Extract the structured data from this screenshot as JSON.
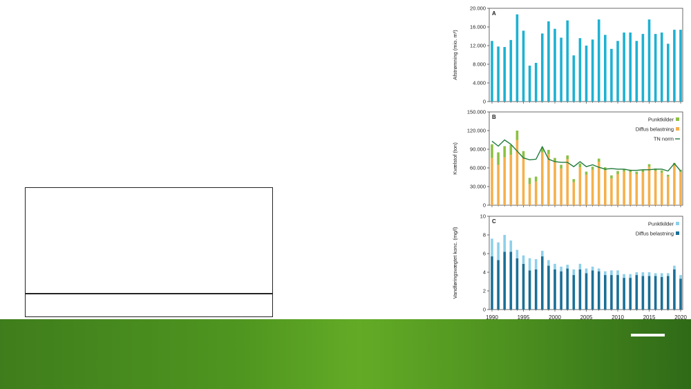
{
  "colors": {
    "runoff": "#1eb1d2",
    "point_sources_n": "#8cc043",
    "diffuse_n": "#f5b04c",
    "tn_norm": "#1f7a3a",
    "point_sources_conc": "#8ed0ea",
    "diffuse_conc": "#1a6f96",
    "band": "#4f9620"
  },
  "chart_data": [
    {
      "type": "bar",
      "panel": "A",
      "ylabel": "Afstrømning (mio. m³)",
      "ylim": [
        0,
        20000
      ],
      "yticks": [
        "0",
        "4.000",
        "8.000",
        "12.000",
        "16.000",
        "20.000"
      ],
      "x": [
        1990,
        1991,
        1992,
        1993,
        1994,
        1995,
        1996,
        1997,
        1998,
        1999,
        2000,
        2001,
        2002,
        2003,
        2004,
        2005,
        2006,
        2007,
        2008,
        2009,
        2010,
        2011,
        2012,
        2013,
        2014,
        2015,
        2016,
        2017,
        2018,
        2019,
        2020
      ],
      "series": [
        {
          "values": [
            13000,
            11800,
            11700,
            13200,
            18700,
            15200,
            7700,
            8300,
            14600,
            17200,
            15600,
            13700,
            17400,
            9900,
            13600,
            12000,
            13300,
            17600,
            14300,
            11300,
            13000,
            14800,
            14800,
            13000,
            14500,
            17600,
            14500,
            14800,
            12400,
            15400,
            15400
          ]
        }
      ]
    },
    {
      "type": "bar",
      "panel": "B",
      "ylabel": "Kvælstof (ton)",
      "ylim": [
        0,
        150000
      ],
      "yticks": [
        "0",
        "30.000",
        "60.000",
        "90.000",
        "120.000",
        "150.000"
      ],
      "legend_position": "top-right",
      "x": [
        1990,
        1991,
        1992,
        1993,
        1994,
        1995,
        1996,
        1997,
        1998,
        1999,
        2000,
        2001,
        2002,
        2003,
        2004,
        2005,
        2006,
        2007,
        2008,
        2009,
        2010,
        2011,
        2012,
        2013,
        2014,
        2015,
        2016,
        2017,
        2018,
        2019,
        2020
      ],
      "series": [
        {
          "name": "Diffus belastning",
          "values": [
            76000,
            65000,
            77000,
            81000,
            105000,
            76000,
            34000,
            38000,
            85000,
            82000,
            70000,
            59000,
            74000,
            37000,
            61000,
            49000,
            57000,
            70000,
            56000,
            43000,
            50000,
            54000,
            53000,
            50000,
            53000,
            62000,
            55000,
            52000,
            46000,
            64000,
            53000
          ]
        },
        {
          "name": "Punktkilder",
          "values": [
            22000,
            20000,
            18000,
            16000,
            15000,
            11000,
            10000,
            8000,
            8000,
            7000,
            6000,
            6000,
            6000,
            5000,
            6000,
            5000,
            5000,
            5000,
            5000,
            5000,
            5000,
            4000,
            4000,
            4000,
            4000,
            4000,
            4000,
            4000,
            3000,
            4000,
            4000
          ]
        },
        {
          "name": "TN norm",
          "type": "line",
          "values": [
            103000,
            95000,
            105000,
            98000,
            87000,
            76000,
            73000,
            74000,
            94000,
            74000,
            70000,
            69000,
            69000,
            62000,
            70000,
            62000,
            65000,
            61000,
            58000,
            59000,
            58000,
            58000,
            56000,
            56000,
            57000,
            57000,
            58000,
            58000,
            55000,
            67000,
            55000
          ]
        }
      ]
    },
    {
      "type": "bar",
      "panel": "C",
      "ylabel": "Vandføringsvægtet konc. (mg/l)",
      "ylim": [
        0,
        10
      ],
      "yticks": [
        "0",
        "2",
        "4",
        "6",
        "8",
        "10"
      ],
      "xticks": [
        "1990",
        "1995",
        "2000",
        "2005",
        "2010",
        "2015",
        "2020"
      ],
      "legend_position": "top-right",
      "x": [
        1990,
        1991,
        1992,
        1993,
        1994,
        1995,
        1996,
        1997,
        1998,
        1999,
        2000,
        2001,
        2002,
        2003,
        2004,
        2005,
        2006,
        2007,
        2008,
        2009,
        2010,
        2011,
        2012,
        2013,
        2014,
        2015,
        2016,
        2017,
        2018,
        2019,
        2020
      ],
      "series": [
        {
          "name": "Diffus belastning",
          "values": [
            5.7,
            5.3,
            6.2,
            6.2,
            5.5,
            4.9,
            4.2,
            4.3,
            5.7,
            4.7,
            4.3,
            4.1,
            4.4,
            3.7,
            4.3,
            3.9,
            4.2,
            4.1,
            3.7,
            3.7,
            3.7,
            3.4,
            3.4,
            3.7,
            3.6,
            3.6,
            3.6,
            3.5,
            3.6,
            4.3,
            3.3
          ]
        },
        {
          "name": "Punktkilder",
          "values": [
            1.9,
            1.9,
            1.8,
            1.2,
            0.9,
            0.9,
            1.3,
            1.1,
            0.6,
            0.6,
            0.6,
            0.5,
            0.4,
            0.6,
            0.6,
            0.5,
            0.4,
            0.3,
            0.4,
            0.5,
            0.5,
            0.4,
            0.4,
            0.3,
            0.4,
            0.4,
            0.3,
            0.4,
            0.3,
            0.4,
            0.4
          ]
        }
      ]
    }
  ]
}
